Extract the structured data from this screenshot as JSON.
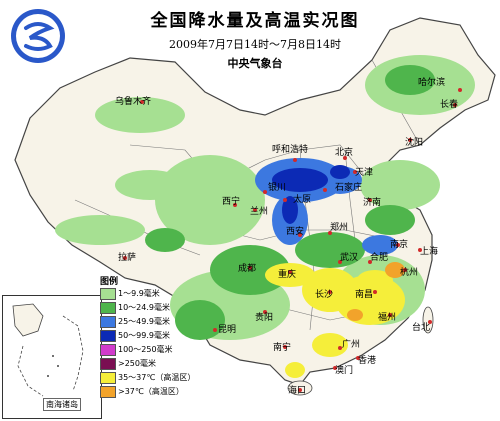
{
  "title": "全国降水量及高温实况图",
  "subtitle": "2009年7月7日14时～7月8日14时",
  "agency": "中央气象台",
  "legend": {
    "title": "图例",
    "items": [
      {
        "label": "1～9.9毫米",
        "color": "#a6e092"
      },
      {
        "label": "10～24.9毫米",
        "color": "#4fb54c"
      },
      {
        "label": "25～49.9毫米",
        "color": "#3c78e0"
      },
      {
        "label": "50～99.9毫米",
        "color": "#0c2ab5"
      },
      {
        "label": "100～250毫米",
        "color": "#d13ccc"
      },
      {
        "label": ">250毫米",
        "color": "#7a0f52"
      },
      {
        "label": "35～37℃（高温区）",
        "color": "#f5ee3a"
      },
      {
        "label": ">37℃（高温区）",
        "color": "#f2a32b"
      }
    ]
  },
  "cities": [
    {
      "name": "哈尔滨",
      "cls": ""
    },
    {
      "name": "长春",
      "cls": ""
    },
    {
      "name": "沈阳",
      "cls": ""
    },
    {
      "name": "乌鲁木齐",
      "cls": ""
    },
    {
      "name": "呼和浩特",
      "cls": ""
    },
    {
      "name": "北京",
      "cls": ""
    },
    {
      "name": "天津",
      "cls": ""
    },
    {
      "name": "石家庄",
      "cls": ""
    },
    {
      "name": "太原",
      "cls": ""
    },
    {
      "name": "济南",
      "cls": ""
    },
    {
      "name": "银川",
      "cls": ""
    },
    {
      "name": "西宁",
      "cls": ""
    },
    {
      "name": "兰州",
      "cls": ""
    },
    {
      "name": "西安",
      "cls": ""
    },
    {
      "name": "郑州",
      "cls": ""
    },
    {
      "name": "南京",
      "cls": ""
    },
    {
      "name": "上海",
      "cls": ""
    },
    {
      "name": "合肥",
      "cls": ""
    },
    {
      "name": "武汉",
      "cls": ""
    },
    {
      "name": "杭州",
      "cls": ""
    },
    {
      "name": "拉萨",
      "cls": ""
    },
    {
      "name": "成都",
      "cls": ""
    },
    {
      "name": "重庆",
      "cls": ""
    },
    {
      "name": "长沙",
      "cls": ""
    },
    {
      "name": "南昌",
      "cls": ""
    },
    {
      "name": "福州",
      "cls": ""
    },
    {
      "name": "台北",
      "cls": ""
    },
    {
      "name": "贵阳",
      "cls": ""
    },
    {
      "name": "昆明",
      "cls": ""
    },
    {
      "name": "南宁",
      "cls": ""
    },
    {
      "name": "广州",
      "cls": ""
    },
    {
      "name": "香港",
      "cls": ""
    },
    {
      "name": "澳门",
      "cls": ""
    },
    {
      "name": "海口",
      "cls": ""
    }
  ],
  "inset_label": "南海诸岛"
}
